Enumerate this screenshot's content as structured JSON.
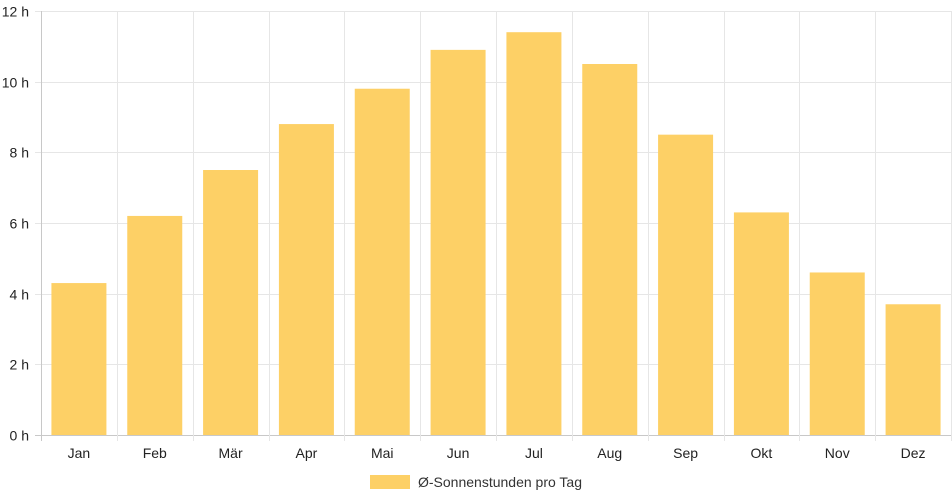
{
  "chart_data": {
    "type": "bar",
    "categories": [
      "Jan",
      "Feb",
      "Mär",
      "Apr",
      "Mai",
      "Jun",
      "Jul",
      "Aug",
      "Sep",
      "Okt",
      "Nov",
      "Dez"
    ],
    "series": [
      {
        "name": "Ø-Sonnenstunden pro Tag",
        "values": [
          4.3,
          6.2,
          7.5,
          8.8,
          9.8,
          10.9,
          11.4,
          10.5,
          8.5,
          6.3,
          4.6,
          3.7
        ]
      }
    ],
    "ylim": [
      0,
      12
    ],
    "yticks": [
      0,
      2,
      4,
      6,
      8,
      10,
      12
    ],
    "ytick_suffix": " h",
    "grid": true,
    "legend_position": "bottom",
    "colors": {
      "bar": "#fdd066",
      "grid": "#e6e6e6",
      "axis": "#c8c8c8"
    }
  }
}
